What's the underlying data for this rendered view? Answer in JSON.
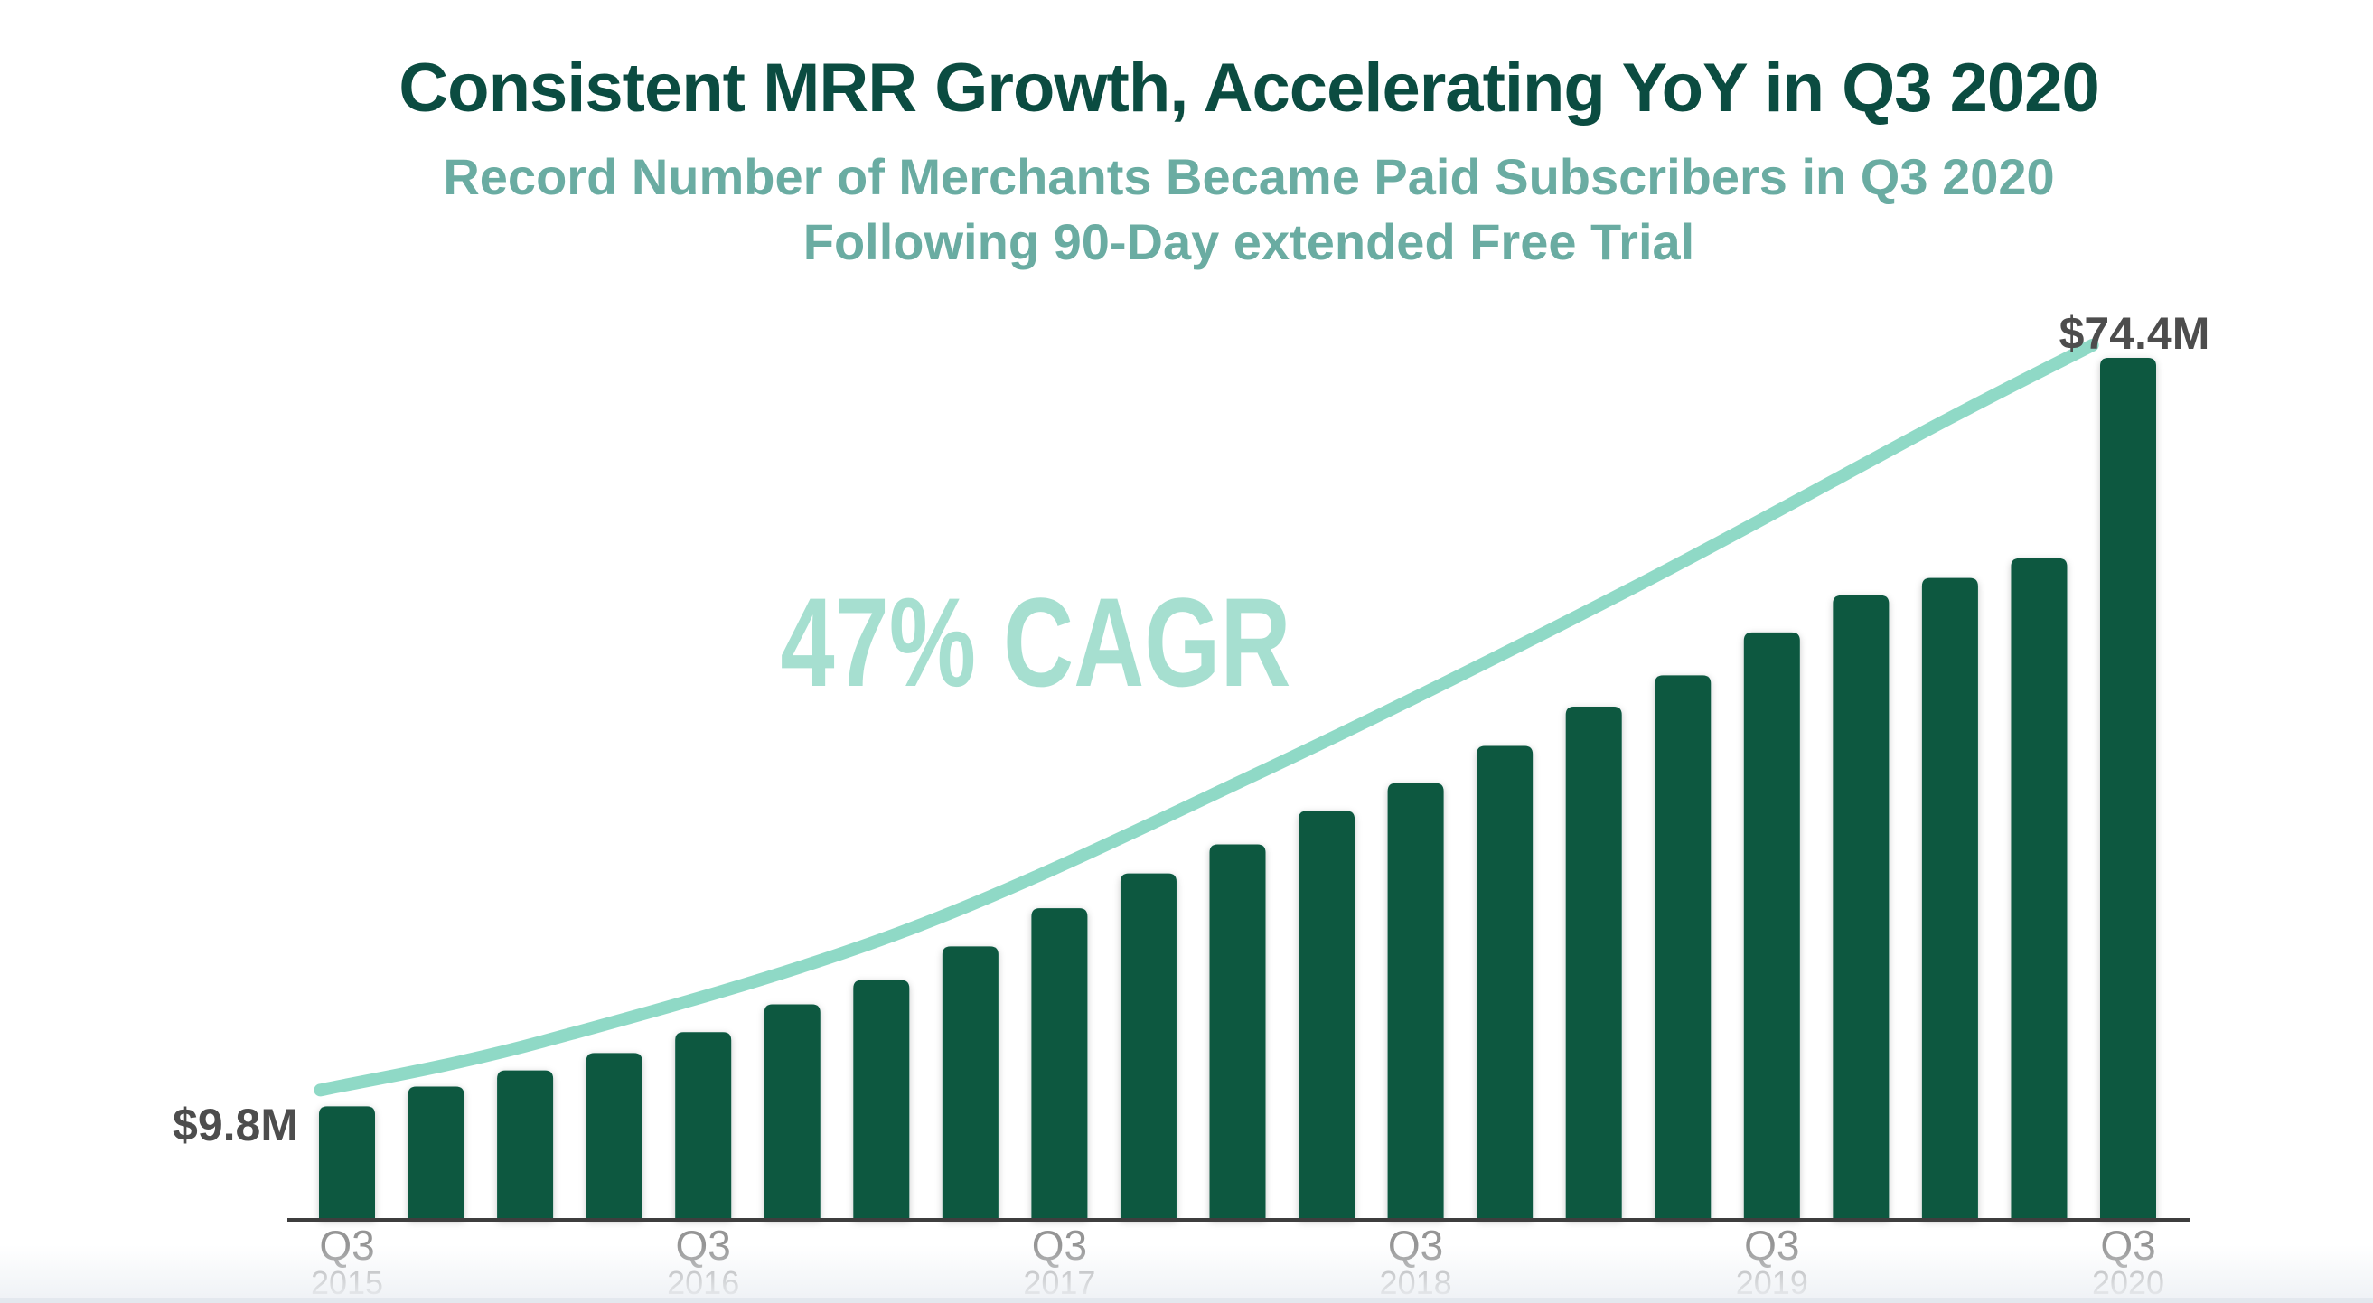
{
  "header": {
    "title": "Consistent MRR Growth, Accelerating YoY in Q3 2020",
    "subtitle_line1": "Record Number of Merchants Became Paid Subscribers in Q3 2020",
    "subtitle_line2": "Following 90-Day extended Free Trial"
  },
  "chart_data": {
    "type": "bar",
    "title": "Consistent MRR Growth, Accelerating YoY in Q3 2020",
    "subtitle": "Record Number of Merchants Became Paid Subscribers in Q3 2020 Following 90-Day extended Free Trial",
    "unit": "MRR, USD millions",
    "n_bars": 21,
    "x_description": "Quarterly bars from Q3 2015 through Q3 2020; only Q3 of each year is labeled",
    "values": [
      9.8,
      11.5,
      12.9,
      14.4,
      16.2,
      18.6,
      20.7,
      23.6,
      26.9,
      29.9,
      32.4,
      35.3,
      37.7,
      40.9,
      44.3,
      47.0,
      50.7,
      53.9,
      55.4,
      57.1,
      74.4
    ],
    "first_bar_label": "$9.8M",
    "last_bar_label": "$74.4M",
    "cagr_annotation": "47% CAGR",
    "x_tick_labels": [
      {
        "bar_index": 0,
        "quarter": "Q3",
        "year": "2015"
      },
      {
        "bar_index": 4,
        "quarter": "Q3",
        "year": "2016"
      },
      {
        "bar_index": 8,
        "quarter": "Q3",
        "year": "2017"
      },
      {
        "bar_index": 12,
        "quarter": "Q3",
        "year": "2018"
      },
      {
        "bar_index": 16,
        "quarter": "Q3",
        "year": "2019"
      },
      {
        "bar_index": 20,
        "quarter": "Q3",
        "year": "2020"
      }
    ],
    "trend_line": {
      "label": "47% CAGR trend line",
      "points_t_value": [
        [
          -0.3,
          11.2
        ],
        [
          2.2,
          15.4
        ],
        [
          6.25,
          24.9
        ],
        [
          10.3,
          38.8
        ],
        [
          14.4,
          54.4
        ],
        [
          17.9,
          68.8
        ],
        [
          19.6,
          75.5
        ]
      ]
    },
    "ylim": [
      0,
      78
    ],
    "grid": false,
    "legend": false
  },
  "colors": {
    "background": "#FFFFFF",
    "title": "#0B4C41",
    "subtitle": "#6AACA2",
    "bar": "#075941",
    "trend_line": "#8FD9C6",
    "cagr_text": "#A6DFD0",
    "value_label": "#4D4D4D",
    "tick_quarter": "#959595",
    "tick_year": "#A8A8A8",
    "axis": "#3E3E3E",
    "footer_strip": "#E3E8EE"
  }
}
